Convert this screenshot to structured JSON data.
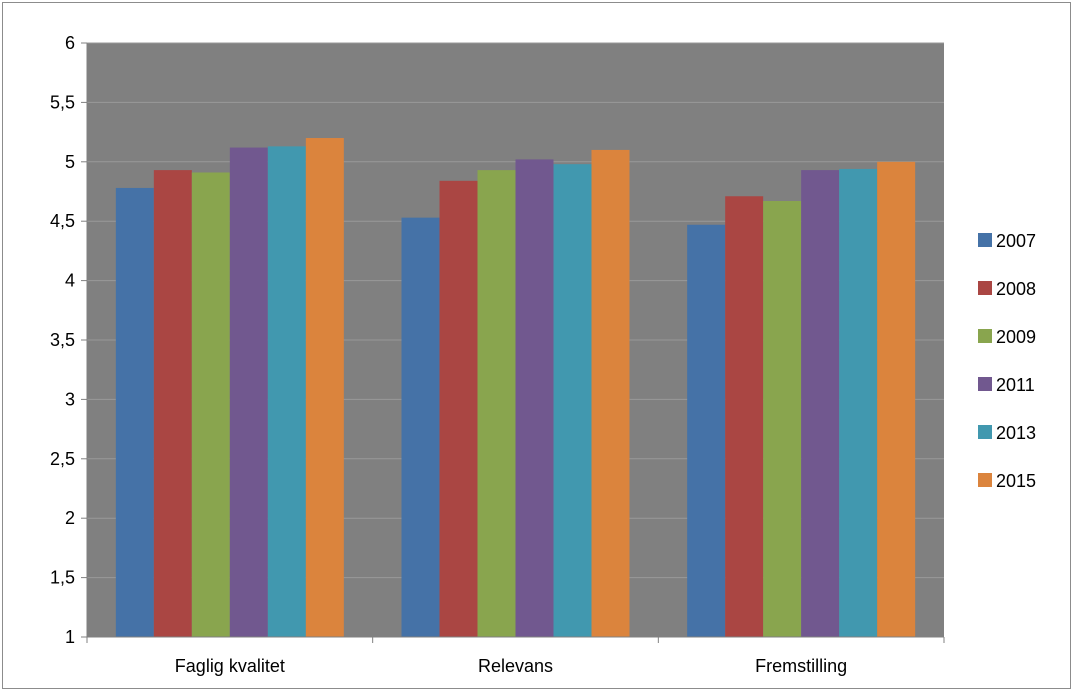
{
  "chart_data": {
    "type": "bar",
    "categories": [
      "Faglig kvalitet",
      "Relevans",
      "Fremstilling"
    ],
    "series": [
      {
        "name": "2007",
        "values": [
          4.78,
          4.53,
          4.47
        ]
      },
      {
        "name": "2008",
        "values": [
          4.93,
          4.84,
          4.71
        ]
      },
      {
        "name": "2009",
        "values": [
          4.91,
          4.93,
          4.67
        ]
      },
      {
        "name": "2011",
        "values": [
          5.12,
          5.02,
          4.93
        ]
      },
      {
        "name": "2013",
        "values": [
          5.13,
          4.98,
          4.94
        ]
      },
      {
        "name": "2015",
        "values": [
          5.2,
          5.1,
          5.0
        ]
      }
    ],
    "yticks": [
      "1",
      "1,5",
      "2",
      "2,5",
      "3",
      "3,5",
      "4",
      "4,5",
      "5",
      "5,5",
      "6"
    ],
    "ylim": [
      1,
      6
    ],
    "grid": true,
    "legend_position": "right",
    "colors": {
      "series": [
        "#4572a7",
        "#aa4643",
        "#89a54e",
        "#71588f",
        "#4198af",
        "#db843d"
      ],
      "plot_background": "#808080",
      "gridline": "#999999",
      "axis": "#808080"
    }
  }
}
